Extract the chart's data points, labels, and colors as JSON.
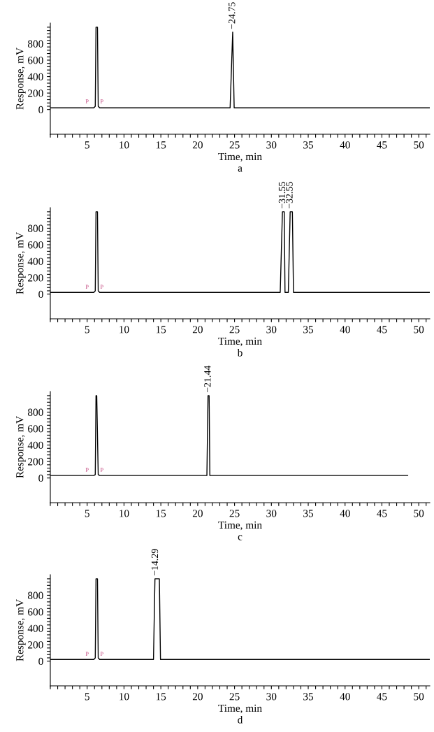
{
  "chart_data": [
    {
      "type": "line",
      "xlabel": "Time, min",
      "ylabel": "Response, mV",
      "xlim": [
        0,
        51.5
      ],
      "ylim": [
        -300,
        1050
      ],
      "grid": false,
      "legend": false,
      "marker": "none",
      "line_style": "solid",
      "xticks": [
        {
          "value": 0,
          "label": null
        },
        {
          "value": 1,
          "label": null
        },
        {
          "value": 2,
          "label": null
        },
        {
          "value": 3,
          "label": null
        },
        {
          "value": 4,
          "label": null
        },
        5,
        {
          "value": 6,
          "label": null
        },
        {
          "value": 7,
          "label": null
        },
        {
          "value": 8,
          "label": null
        },
        {
          "value": 9,
          "label": null
        },
        10,
        {
          "value": 11,
          "label": null
        },
        {
          "value": 12,
          "label": null
        },
        {
          "value": 13,
          "label": null
        },
        {
          "value": 14,
          "label": null
        },
        15,
        {
          "value": 16,
          "label": null
        },
        {
          "value": 17,
          "label": null
        },
        {
          "value": 18,
          "label": null
        },
        {
          "value": 19,
          "label": null
        },
        20,
        {
          "value": 21,
          "label": null
        },
        {
          "value": 22,
          "label": null
        },
        {
          "value": 23,
          "label": null
        },
        {
          "value": 24,
          "label": null
        },
        25,
        {
          "value": 26,
          "label": null
        },
        {
          "value": 27,
          "label": null
        },
        {
          "value": 28,
          "label": null
        },
        {
          "value": 29,
          "label": null
        },
        30,
        {
          "value": 31,
          "label": null
        },
        {
          "value": 32,
          "label": null
        },
        {
          "value": 33,
          "label": null
        },
        {
          "value": 34,
          "label": null
        },
        35,
        {
          "value": 36,
          "label": null
        },
        {
          "value": 37,
          "label": null
        },
        {
          "value": 38,
          "label": null
        },
        {
          "value": 39,
          "label": null
        },
        40,
        {
          "value": 41,
          "label": null
        },
        {
          "value": 42,
          "label": null
        },
        {
          "value": 43,
          "label": null
        },
        {
          "value": 44,
          "label": null
        },
        45,
        {
          "value": 46,
          "label": null
        },
        {
          "value": 47,
          "label": null
        },
        {
          "value": 48,
          "label": null
        },
        {
          "value": 49,
          "label": null
        },
        50,
        {
          "value": 51,
          "label": null
        }
      ],
      "yticks": [
        0,
        {
          "value": 40,
          "label": null
        },
        {
          "value": 80,
          "label": null
        },
        {
          "value": 120,
          "label": null
        },
        {
          "value": 160,
          "label": null
        },
        200,
        {
          "value": 240,
          "label": null
        },
        {
          "value": 280,
          "label": null
        },
        {
          "value": 320,
          "label": null
        },
        {
          "value": 360,
          "label": null
        },
        400,
        {
          "value": 440,
          "label": null
        },
        {
          "value": 480,
          "label": null
        },
        {
          "value": 520,
          "label": null
        },
        {
          "value": 560,
          "label": null
        },
        600,
        {
          "value": 640,
          "label": null
        },
        {
          "value": 680,
          "label": null
        },
        {
          "value": 720,
          "label": null
        },
        {
          "value": 760,
          "label": null
        },
        800,
        {
          "value": 840,
          "label": null
        },
        {
          "value": 880,
          "label": null
        },
        {
          "value": 920,
          "label": null
        },
        {
          "value": 960,
          "label": null
        },
        {
          "value": 1000,
          "label": null
        }
      ],
      "series": [
        {
          "color": "#000000",
          "x": [
            0,
            5.9,
            6.1,
            6.2,
            6.4,
            6.5,
            6.7,
            24.4,
            24.75,
            24.95,
            51.5
          ],
          "values": [
            20,
            20,
            40,
            1000,
            1000,
            40,
            20,
            20,
            940,
            20,
            20
          ]
        }
      ],
      "annotations": [
        {
          "text": "−24.75",
          "x": 24.75,
          "y": 940
        },
        {
          "text": "P",
          "x": 5,
          "y": 60
        },
        {
          "text": "P",
          "x": 7,
          "y": 60
        },
        "a"
      ]
    },
    {
      "type": "line",
      "xlabel": "Time, min",
      "ylabel": "Response, mV",
      "xlim": [
        0,
        51.5
      ],
      "ylim": [
        -300,
        1050
      ],
      "grid": false,
      "legend": false,
      "marker": "none",
      "line_style": "solid",
      "xticks": [
        {
          "value": 0,
          "label": null
        },
        {
          "value": 1,
          "label": null
        },
        {
          "value": 2,
          "label": null
        },
        {
          "value": 3,
          "label": null
        },
        {
          "value": 4,
          "label": null
        },
        5,
        {
          "value": 6,
          "label": null
        },
        {
          "value": 7,
          "label": null
        },
        {
          "value": 8,
          "label": null
        },
        {
          "value": 9,
          "label": null
        },
        10,
        {
          "value": 11,
          "label": null
        },
        {
          "value": 12,
          "label": null
        },
        {
          "value": 13,
          "label": null
        },
        {
          "value": 14,
          "label": null
        },
        15,
        {
          "value": 16,
          "label": null
        },
        {
          "value": 17,
          "label": null
        },
        {
          "value": 18,
          "label": null
        },
        {
          "value": 19,
          "label": null
        },
        20,
        {
          "value": 21,
          "label": null
        },
        {
          "value": 22,
          "label": null
        },
        {
          "value": 23,
          "label": null
        },
        {
          "value": 24,
          "label": null
        },
        25,
        {
          "value": 26,
          "label": null
        },
        {
          "value": 27,
          "label": null
        },
        {
          "value": 28,
          "label": null
        },
        {
          "value": 29,
          "label": null
        },
        30,
        {
          "value": 31,
          "label": null
        },
        {
          "value": 32,
          "label": null
        },
        {
          "value": 33,
          "label": null
        },
        {
          "value": 34,
          "label": null
        },
        35,
        {
          "value": 36,
          "label": null
        },
        {
          "value": 37,
          "label": null
        },
        {
          "value": 38,
          "label": null
        },
        {
          "value": 39,
          "label": null
        },
        40,
        {
          "value": 41,
          "label": null
        },
        {
          "value": 42,
          "label": null
        },
        {
          "value": 43,
          "label": null
        },
        {
          "value": 44,
          "label": null
        },
        45,
        {
          "value": 46,
          "label": null
        },
        {
          "value": 47,
          "label": null
        },
        {
          "value": 48,
          "label": null
        },
        {
          "value": 49,
          "label": null
        },
        50,
        {
          "value": 51,
          "label": null
        }
      ],
      "yticks": [
        0,
        {
          "value": 40,
          "label": null
        },
        {
          "value": 80,
          "label": null
        },
        {
          "value": 120,
          "label": null
        },
        {
          "value": 160,
          "label": null
        },
        200,
        {
          "value": 240,
          "label": null
        },
        {
          "value": 280,
          "label": null
        },
        {
          "value": 320,
          "label": null
        },
        {
          "value": 360,
          "label": null
        },
        400,
        {
          "value": 440,
          "label": null
        },
        {
          "value": 480,
          "label": null
        },
        {
          "value": 520,
          "label": null
        },
        {
          "value": 560,
          "label": null
        },
        600,
        {
          "value": 640,
          "label": null
        },
        {
          "value": 680,
          "label": null
        },
        {
          "value": 720,
          "label": null
        },
        {
          "value": 760,
          "label": null
        },
        800,
        {
          "value": 840,
          "label": null
        },
        {
          "value": 880,
          "label": null
        },
        {
          "value": 920,
          "label": null
        },
        {
          "value": 960,
          "label": null
        },
        {
          "value": 1000,
          "label": null
        }
      ],
      "series": [
        {
          "color": "#000000",
          "x": [
            0,
            5.9,
            6.1,
            6.2,
            6.4,
            6.5,
            6.7,
            31.2,
            31.5,
            31.75,
            31.85,
            32.3,
            32.55,
            32.85,
            33.0,
            51.5
          ],
          "values": [
            20,
            20,
            40,
            1000,
            1000,
            40,
            20,
            20,
            1000,
            1000,
            20,
            20,
            1000,
            1000,
            20,
            20
          ]
        }
      ],
      "annotations": [
        {
          "text": "−31.55",
          "x": 31.55,
          "y": 1000
        },
        {
          "text": "−32.55",
          "x": 32.55,
          "y": 1000
        },
        {
          "text": "P",
          "x": 5,
          "y": 50
        },
        {
          "text": "P",
          "x": 7,
          "y": 50
        },
        "b"
      ]
    },
    {
      "type": "line",
      "xlabel": "Time, min",
      "ylabel": "Response, mV",
      "xlim": [
        0,
        51.5
      ],
      "ylim": [
        -300,
        1050
      ],
      "grid": false,
      "legend": false,
      "marker": "none",
      "line_style": "solid",
      "xticks": [
        {
          "value": 0,
          "label": null
        },
        {
          "value": 1,
          "label": null
        },
        {
          "value": 2,
          "label": null
        },
        {
          "value": 3,
          "label": null
        },
        {
          "value": 4,
          "label": null
        },
        5,
        {
          "value": 6,
          "label": null
        },
        {
          "value": 7,
          "label": null
        },
        {
          "value": 8,
          "label": null
        },
        {
          "value": 9,
          "label": null
        },
        10,
        {
          "value": 11,
          "label": null
        },
        {
          "value": 12,
          "label": null
        },
        {
          "value": 13,
          "label": null
        },
        {
          "value": 14,
          "label": null
        },
        15,
        {
          "value": 16,
          "label": null
        },
        {
          "value": 17,
          "label": null
        },
        {
          "value": 18,
          "label": null
        },
        {
          "value": 19,
          "label": null
        },
        20,
        {
          "value": 21,
          "label": null
        },
        {
          "value": 22,
          "label": null
        },
        {
          "value": 23,
          "label": null
        },
        {
          "value": 24,
          "label": null
        },
        25,
        {
          "value": 26,
          "label": null
        },
        {
          "value": 27,
          "label": null
        },
        {
          "value": 28,
          "label": null
        },
        {
          "value": 29,
          "label": null
        },
        30,
        {
          "value": 31,
          "label": null
        },
        {
          "value": 32,
          "label": null
        },
        {
          "value": 33,
          "label": null
        },
        {
          "value": 34,
          "label": null
        },
        35,
        {
          "value": 36,
          "label": null
        },
        {
          "value": 37,
          "label": null
        },
        {
          "value": 38,
          "label": null
        },
        {
          "value": 39,
          "label": null
        },
        40,
        {
          "value": 41,
          "label": null
        },
        {
          "value": 42,
          "label": null
        },
        {
          "value": 43,
          "label": null
        },
        {
          "value": 44,
          "label": null
        },
        45,
        {
          "value": 46,
          "label": null
        },
        {
          "value": 47,
          "label": null
        },
        {
          "value": 48,
          "label": null
        },
        {
          "value": 49,
          "label": null
        },
        50,
        {
          "value": 51,
          "label": null
        }
      ],
      "yticks": [
        0,
        {
          "value": 40,
          "label": null
        },
        {
          "value": 80,
          "label": null
        },
        {
          "value": 120,
          "label": null
        },
        {
          "value": 160,
          "label": null
        },
        200,
        {
          "value": 240,
          "label": null
        },
        {
          "value": 280,
          "label": null
        },
        {
          "value": 320,
          "label": null
        },
        {
          "value": 360,
          "label": null
        },
        400,
        {
          "value": 440,
          "label": null
        },
        {
          "value": 480,
          "label": null
        },
        {
          "value": 520,
          "label": null
        },
        {
          "value": 560,
          "label": null
        },
        600,
        {
          "value": 640,
          "label": null
        },
        {
          "value": 680,
          "label": null
        },
        {
          "value": 720,
          "label": null
        },
        {
          "value": 760,
          "label": null
        },
        800,
        {
          "value": 840,
          "label": null
        },
        {
          "value": 880,
          "label": null
        },
        {
          "value": 920,
          "label": null
        },
        {
          "value": 960,
          "label": null
        },
        {
          "value": 1000,
          "label": null
        }
      ],
      "series": [
        {
          "color": "#000000",
          "x": [
            0,
            5.9,
            6.1,
            6.2,
            6.3,
            6.5,
            6.7,
            21.25,
            21.4,
            21.55,
            21.65,
            48.5
          ],
          "values": [
            30,
            30,
            40,
            1000,
            1000,
            40,
            30,
            30,
            1000,
            1000,
            30,
            30
          ]
        }
      ],
      "annotations": [
        {
          "text": "−21.44",
          "x": 21.44,
          "y": 1000
        },
        {
          "text": "P",
          "x": 5,
          "y": 60
        },
        {
          "text": "P",
          "x": 7,
          "y": 60
        },
        "c"
      ]
    },
    {
      "type": "line",
      "xlabel": "Time, min",
      "ylabel": "Response, mV",
      "xlim": [
        0,
        51.5
      ],
      "ylim": [
        -300,
        1050
      ],
      "grid": false,
      "legend": false,
      "marker": "none",
      "line_style": "solid",
      "xticks": [
        {
          "value": 0,
          "label": null
        },
        {
          "value": 1,
          "label": null
        },
        {
          "value": 2,
          "label": null
        },
        {
          "value": 3,
          "label": null
        },
        {
          "value": 4,
          "label": null
        },
        5,
        {
          "value": 6,
          "label": null
        },
        {
          "value": 7,
          "label": null
        },
        {
          "value": 8,
          "label": null
        },
        {
          "value": 9,
          "label": null
        },
        10,
        {
          "value": 11,
          "label": null
        },
        {
          "value": 12,
          "label": null
        },
        {
          "value": 13,
          "label": null
        },
        {
          "value": 14,
          "label": null
        },
        15,
        {
          "value": 16,
          "label": null
        },
        {
          "value": 17,
          "label": null
        },
        {
          "value": 18,
          "label": null
        },
        {
          "value": 19,
          "label": null
        },
        20,
        {
          "value": 21,
          "label": null
        },
        {
          "value": 22,
          "label": null
        },
        {
          "value": 23,
          "label": null
        },
        {
          "value": 24,
          "label": null
        },
        25,
        {
          "value": 26,
          "label": null
        },
        {
          "value": 27,
          "label": null
        },
        {
          "value": 28,
          "label": null
        },
        {
          "value": 29,
          "label": null
        },
        30,
        {
          "value": 31,
          "label": null
        },
        {
          "value": 32,
          "label": null
        },
        {
          "value": 33,
          "label": null
        },
        {
          "value": 34,
          "label": null
        },
        35,
        {
          "value": 36,
          "label": null
        },
        {
          "value": 37,
          "label": null
        },
        {
          "value": 38,
          "label": null
        },
        {
          "value": 39,
          "label": null
        },
        40,
        {
          "value": 41,
          "label": null
        },
        {
          "value": 42,
          "label": null
        },
        {
          "value": 43,
          "label": null
        },
        {
          "value": 44,
          "label": null
        },
        45,
        {
          "value": 46,
          "label": null
        },
        {
          "value": 47,
          "label": null
        },
        {
          "value": 48,
          "label": null
        },
        {
          "value": 49,
          "label": null
        },
        50,
        {
          "value": 51,
          "label": null
        }
      ],
      "yticks": [
        0,
        {
          "value": 40,
          "label": null
        },
        {
          "value": 80,
          "label": null
        },
        {
          "value": 120,
          "label": null
        },
        {
          "value": 160,
          "label": null
        },
        200,
        {
          "value": 240,
          "label": null
        },
        {
          "value": 280,
          "label": null
        },
        {
          "value": 320,
          "label": null
        },
        {
          "value": 360,
          "label": null
        },
        400,
        {
          "value": 440,
          "label": null
        },
        {
          "value": 480,
          "label": null
        },
        {
          "value": 520,
          "label": null
        },
        {
          "value": 560,
          "label": null
        },
        600,
        {
          "value": 640,
          "label": null
        },
        {
          "value": 680,
          "label": null
        },
        {
          "value": 720,
          "label": null
        },
        {
          "value": 760,
          "label": null
        },
        800,
        {
          "value": 840,
          "label": null
        },
        {
          "value": 880,
          "label": null
        },
        {
          "value": 920,
          "label": null
        },
        {
          "value": 960,
          "label": null
        },
        {
          "value": 1000,
          "label": null
        }
      ],
      "series": [
        {
          "color": "#000000",
          "x": [
            0,
            5.9,
            6.1,
            6.2,
            6.4,
            6.5,
            6.7,
            14.0,
            14.2,
            14.8,
            14.95,
            51.5
          ],
          "values": [
            20,
            20,
            40,
            1000,
            1000,
            40,
            20,
            20,
            1000,
            1000,
            20,
            20
          ]
        }
      ],
      "annotations": [
        {
          "text": "−14.29",
          "x": 14.29,
          "y": 1000
        },
        {
          "text": "P",
          "x": 5,
          "y": 50
        },
        {
          "text": "P",
          "x": 7,
          "y": 50
        },
        "d"
      ]
    }
  ]
}
